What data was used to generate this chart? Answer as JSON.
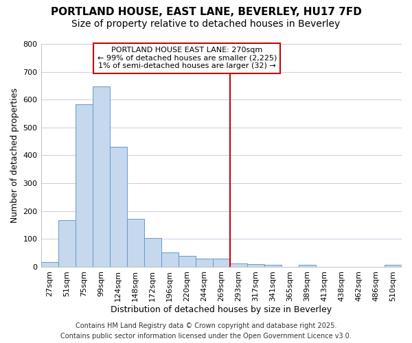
{
  "title": "PORTLAND HOUSE, EAST LANE, BEVERLEY, HU17 7FD",
  "subtitle": "Size of property relative to detached houses in Beverley",
  "xlabel": "Distribution of detached houses by size in Beverley",
  "ylabel": "Number of detached properties",
  "bar_color": "#c5d8ee",
  "bar_edge_color": "#6699cc",
  "categories": [
    "27sqm",
    "51sqm",
    "75sqm",
    "99sqm",
    "124sqm",
    "148sqm",
    "172sqm",
    "196sqm",
    "220sqm",
    "244sqm",
    "269sqm",
    "293sqm",
    "317sqm",
    "341sqm",
    "365sqm",
    "389sqm",
    "413sqm",
    "438sqm",
    "462sqm",
    "486sqm",
    "510sqm"
  ],
  "values": [
    17,
    168,
    583,
    648,
    430,
    173,
    103,
    52,
    40,
    30,
    30,
    13,
    10,
    8,
    0,
    8,
    0,
    0,
    0,
    0,
    8
  ],
  "ylim": [
    0,
    800
  ],
  "yticks": [
    0,
    100,
    200,
    300,
    400,
    500,
    600,
    700,
    800
  ],
  "red_line_index": 10,
  "annotation_line1": "PORTLAND HOUSE EAST LANE: 270sqm",
  "annotation_line2": "← 99% of detached houses are smaller (2,225)",
  "annotation_line3": "1% of semi-detached houses are larger (32) →",
  "annotation_box_color": "#ffffff",
  "annotation_border_color": "#cc0000",
  "grid_color": "#ccccdd",
  "background_color": "#ffffff",
  "footer_line1": "Contains HM Land Registry data © Crown copyright and database right 2025.",
  "footer_line2": "Contains public sector information licensed under the Open Government Licence v3.0.",
  "title_fontsize": 11,
  "subtitle_fontsize": 10,
  "tick_fontsize": 8,
  "ylabel_fontsize": 9,
  "xlabel_fontsize": 9,
  "footer_fontsize": 7,
  "annot_fontsize": 8
}
